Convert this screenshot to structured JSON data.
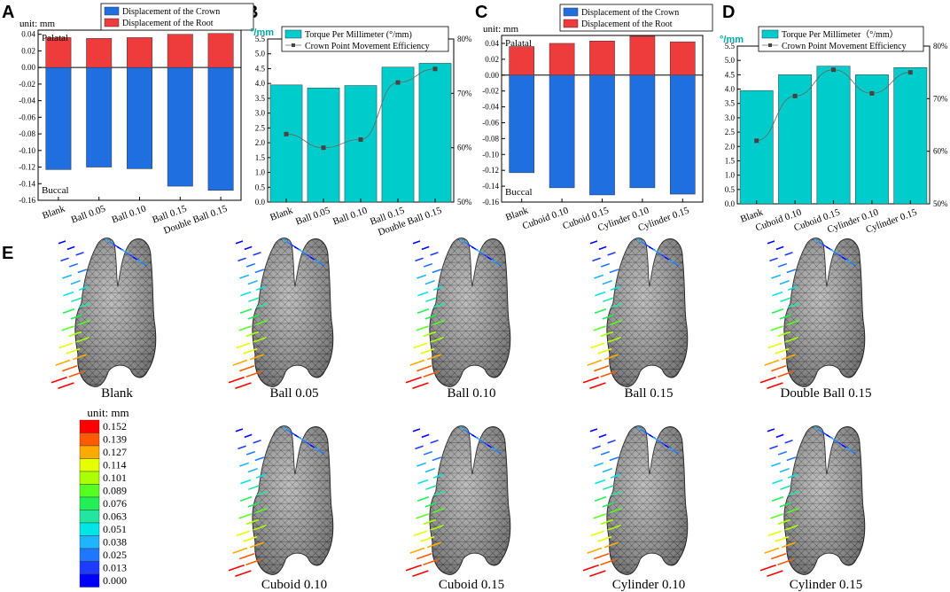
{
  "panels": {
    "A": {
      "letter": "A",
      "unit": "unit: mm",
      "legend": [
        "Displacement of the Crown",
        "Displacement of the Root"
      ],
      "top_label": "Palatal",
      "bottom_label": "Buccal"
    },
    "B": {
      "letter": "B",
      "left_unit": "°/mm",
      "legend": [
        "Torque Per Millimeter (°/mm)",
        "Crown Point Movement Efficiency"
      ]
    },
    "C": {
      "letter": "C",
      "unit": "unit: mm",
      "legend": [
        "Displacement of the Crown",
        "Displacement of the Root"
      ],
      "top_label": "Palatal",
      "bottom_label": "Buccal"
    },
    "D": {
      "letter": "D",
      "left_unit": "°/mm",
      "legend": [
        "Torque Per Millimeter（°/mm）",
        "Crown Point Movement Efficiency"
      ]
    },
    "E": {
      "letter": "E"
    }
  },
  "chart_data": [
    {
      "id": "A",
      "type": "bar",
      "categories": [
        "Blank",
        "Ball 0.05",
        "Ball 0.10",
        "Ball 0.15",
        "Double Ball 0.15"
      ],
      "series": [
        {
          "name": "Displacement of the Crown",
          "color": "#1f6fe0",
          "values": [
            -0.123,
            -0.12,
            -0.122,
            -0.143,
            -0.148
          ]
        },
        {
          "name": "Displacement of the Root",
          "color": "#ee3b3b",
          "values": [
            0.036,
            0.035,
            0.036,
            0.04,
            0.041
          ]
        }
      ],
      "ylim": [
        -0.16,
        0.045
      ],
      "yticks": [
        "0.04",
        "0.02",
        "0.00",
        "-0.02",
        "-0.04",
        "-0.06",
        "-0.08",
        "-0.10",
        "-0.12",
        "-0.14",
        "-0.16"
      ],
      "ytick_values": [
        0.04,
        0.02,
        0,
        -0.02,
        -0.04,
        -0.06,
        -0.08,
        -0.1,
        -0.12,
        -0.14,
        -0.16
      ],
      "ylabel": "unit: mm"
    },
    {
      "id": "B",
      "type": "bar",
      "categories": [
        "Blank",
        "Ball 0.05",
        "Ball 0.10",
        "Ball 0.15",
        "Double Ball 0.15"
      ],
      "series": [
        {
          "name": "Torque Per Millimeter (°/mm)",
          "color": "#00cccc",
          "values": [
            3.95,
            3.85,
            3.93,
            4.55,
            4.68
          ]
        },
        {
          "name": "Crown Point Movement Efficiency",
          "color": "#555555",
          "values": [
            62.5,
            60.0,
            61.5,
            72.0,
            74.5
          ],
          "axis": "right"
        }
      ],
      "ylim": [
        0,
        5.5
      ],
      "yticks": [
        "0.0",
        "0.5",
        "1.0",
        "1.5",
        "2.0",
        "2.5",
        "3.0",
        "3.5",
        "4.0",
        "4.5",
        "5.0",
        "5.5"
      ],
      "ytick_values": [
        0,
        0.5,
        1,
        1.5,
        2,
        2.5,
        3,
        3.5,
        4,
        4.5,
        5,
        5.5
      ],
      "y2lim": [
        50,
        80
      ],
      "y2ticks": [
        "50%",
        "60%",
        "70%",
        "80%"
      ],
      "y2tick_values": [
        50,
        60,
        70,
        80
      ],
      "ylabel": "°/mm"
    },
    {
      "id": "C",
      "type": "bar",
      "categories": [
        "Blank",
        "Cuboid 0.10",
        "Cuboid 0.15",
        "Cylinder 0.10",
        "Cylinder 0.15"
      ],
      "series": [
        {
          "name": "Displacement of the Crown",
          "color": "#1f6fe0",
          "values": [
            -0.123,
            -0.142,
            -0.151,
            -0.142,
            -0.15
          ]
        },
        {
          "name": "Displacement of the Root",
          "color": "#ee3b3b",
          "values": [
            0.036,
            0.04,
            0.043,
            0.049,
            0.042
          ]
        }
      ],
      "ylim": [
        -0.16,
        0.05
      ],
      "yticks": [
        "0.04",
        "0.02",
        "0.00",
        "-0.02",
        "-0.04",
        "-0.06",
        "-0.08",
        "-0.10",
        "-0.12",
        "-0.14",
        "-0.16"
      ],
      "ytick_values": [
        0.04,
        0.02,
        0,
        -0.02,
        -0.04,
        -0.06,
        -0.08,
        -0.1,
        -0.12,
        -0.14,
        -0.16
      ],
      "ylabel": "unit: mm"
    },
    {
      "id": "D",
      "type": "bar",
      "categories": [
        "Blank",
        "Cuboid 0.10",
        "Cuboid 0.15",
        "Cylinder 0.10",
        "Cylinder 0.15"
      ],
      "series": [
        {
          "name": "Torque Per Millimeter（°/mm）",
          "color": "#00cccc",
          "values": [
            3.95,
            4.5,
            4.8,
            4.5,
            4.75
          ]
        },
        {
          "name": "Crown Point Movement Efficiency",
          "color": "#555555",
          "values": [
            62.0,
            70.5,
            75.5,
            71.0,
            75.0
          ],
          "axis": "right"
        }
      ],
      "ylim": [
        0,
        5.5
      ],
      "yticks": [
        "0.0",
        "0.5",
        "1.0",
        "1.5",
        "2.0",
        "2.5",
        "3.0",
        "3.5",
        "4.0",
        "4.5",
        "5.0",
        "5.5"
      ],
      "ytick_values": [
        0,
        0.5,
        1,
        1.5,
        2,
        2.5,
        3,
        3.5,
        4,
        4.5,
        5,
        5.5
      ],
      "y2lim": [
        50,
        80
      ],
      "y2ticks": [
        "50%",
        "60%",
        "70%",
        "80%"
      ],
      "y2tick_values": [
        50,
        60,
        70,
        80
      ],
      "ylabel": "°/mm"
    }
  ],
  "teeth": {
    "labels": [
      "Blank",
      "Ball 0.05",
      "Ball 0.10",
      "Ball 0.15",
      "Double Ball 0.15",
      "Cuboid 0.10",
      "Cuboid 0.15",
      "Cylinder 0.10",
      "Cylinder 0.15"
    ]
  },
  "colorbar": {
    "title": "unit: mm",
    "values": [
      "0.152",
      "0.139",
      "0.127",
      "0.114",
      "0.101",
      "0.089",
      "0.076",
      "0.063",
      "0.051",
      "0.038",
      "0.025",
      "0.013",
      "0.000"
    ],
    "colors": [
      "#ff0000",
      "#ff5a00",
      "#ffaa00",
      "#e6ff00",
      "#aaff00",
      "#55ff22",
      "#22ee55",
      "#22e6a0",
      "#00e6e6",
      "#1eb4ff",
      "#1e78ff",
      "#1e3cff",
      "#0000ff"
    ]
  }
}
